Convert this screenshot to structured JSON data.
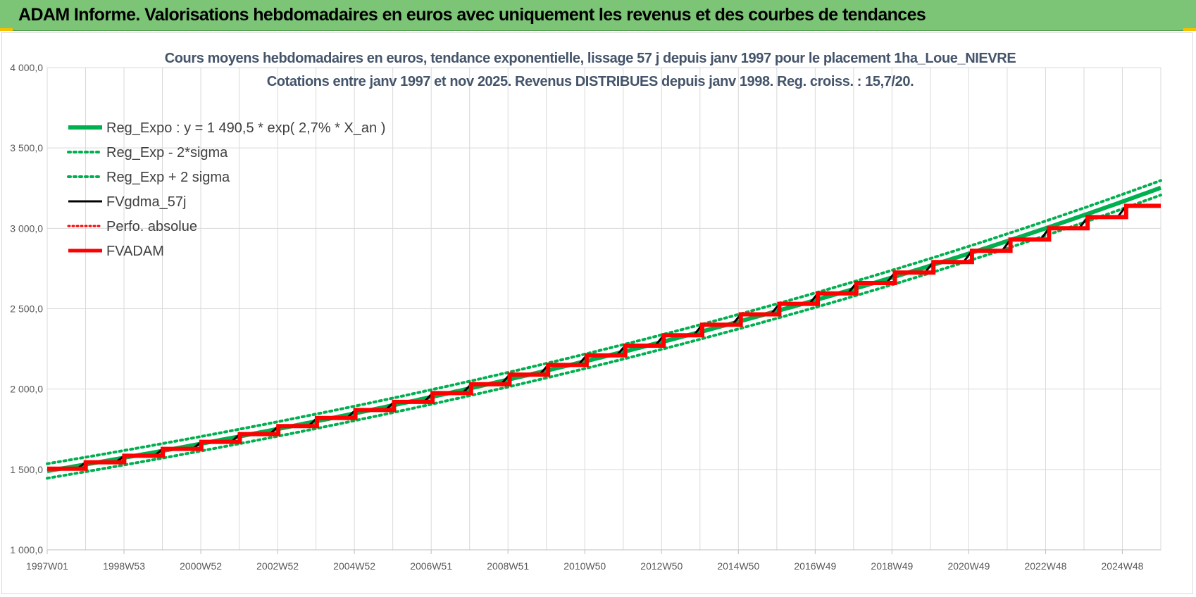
{
  "header": {
    "title": "ADAM Informe. Valorisations hebdomadaires en euros avec uniquement les revenus et des courbes de tendances"
  },
  "colors": {
    "header_bg": "#7cc576",
    "reg_green": "#00b050",
    "sigma_green": "#00b050",
    "fv_black": "#000000",
    "perfo_red": "#ff0000",
    "fvadam_red": "#ff0000"
  },
  "chart_data": {
    "type": "line",
    "title_line1": "Cours moyens hebdomadaires en euros, tendance exponentielle, lissage 57 j depuis janv 1997 pour le placement 1ha_Loue_NIEVRE",
    "title_line2": "Cotations entre janv 1997 et nov 2025. Revenus  DISTRIBUES depuis janv 1998.  Reg. croiss. : 15,7/20.",
    "y_ticks": [
      "1 000,0",
      "1 500,0",
      "2 000,0",
      "2 500,0",
      "3 000,0",
      "3 500,0",
      "4 000,0"
    ],
    "ylim": [
      1000,
      4000
    ],
    "x_tick_labels": [
      "1997W01",
      "1998W53",
      "2000W52",
      "2002W52",
      "2004W52",
      "2006W51",
      "2008W51",
      "2010W50",
      "2012W50",
      "2014W50",
      "2016W49",
      "2018W49",
      "2020W49",
      "2022W48",
      "2024W48"
    ],
    "x_start_year": 1997.0,
    "x_end_year": 2025.9,
    "grid": true,
    "legend_position": "top-left",
    "legend": [
      {
        "label": "Reg_Expo : y = 1 490,5 * exp( 2,7% *  X_an )",
        "style": "reg"
      },
      {
        "label": "Reg_Exp - 2*sigma",
        "style": "sigma"
      },
      {
        "label": "Reg_Exp + 2 sigma",
        "style": "sigma"
      },
      {
        "label": "FVgdma_57j",
        "style": "fv"
      },
      {
        "label": "Perfo. absolue",
        "style": "perfo"
      },
      {
        "label": "FVADAM",
        "style": "fvadam"
      }
    ],
    "regression": {
      "a": 1490.5,
      "rate": 0.027,
      "sigma_offset": 45
    },
    "fvadam_steps": [
      {
        "year": 1997.0,
        "value": 1505
      },
      {
        "year": 1998.0,
        "value": 1545
      },
      {
        "year": 1999.0,
        "value": 1585
      },
      {
        "year": 2000.0,
        "value": 1628
      },
      {
        "year": 2001.0,
        "value": 1672
      },
      {
        "year": 2002.0,
        "value": 1720
      },
      {
        "year": 2003.0,
        "value": 1770
      },
      {
        "year": 2004.0,
        "value": 1820
      },
      {
        "year": 2005.0,
        "value": 1870
      },
      {
        "year": 2006.0,
        "value": 1920
      },
      {
        "year": 2007.0,
        "value": 1975
      },
      {
        "year": 2008.0,
        "value": 2030
      },
      {
        "year": 2009.0,
        "value": 2090
      },
      {
        "year": 2010.0,
        "value": 2150
      },
      {
        "year": 2011.0,
        "value": 2210
      },
      {
        "year": 2012.0,
        "value": 2270
      },
      {
        "year": 2013.0,
        "value": 2335
      },
      {
        "year": 2014.0,
        "value": 2400
      },
      {
        "year": 2015.0,
        "value": 2465
      },
      {
        "year": 2016.0,
        "value": 2530
      },
      {
        "year": 2017.0,
        "value": 2595
      },
      {
        "year": 2018.0,
        "value": 2660
      },
      {
        "year": 2019.0,
        "value": 2725
      },
      {
        "year": 2020.0,
        "value": 2790
      },
      {
        "year": 2021.0,
        "value": 2860
      },
      {
        "year": 2022.0,
        "value": 2930
      },
      {
        "year": 2023.0,
        "value": 3000
      },
      {
        "year": 2024.0,
        "value": 3070
      },
      {
        "year": 2025.0,
        "value": 3140
      }
    ]
  }
}
